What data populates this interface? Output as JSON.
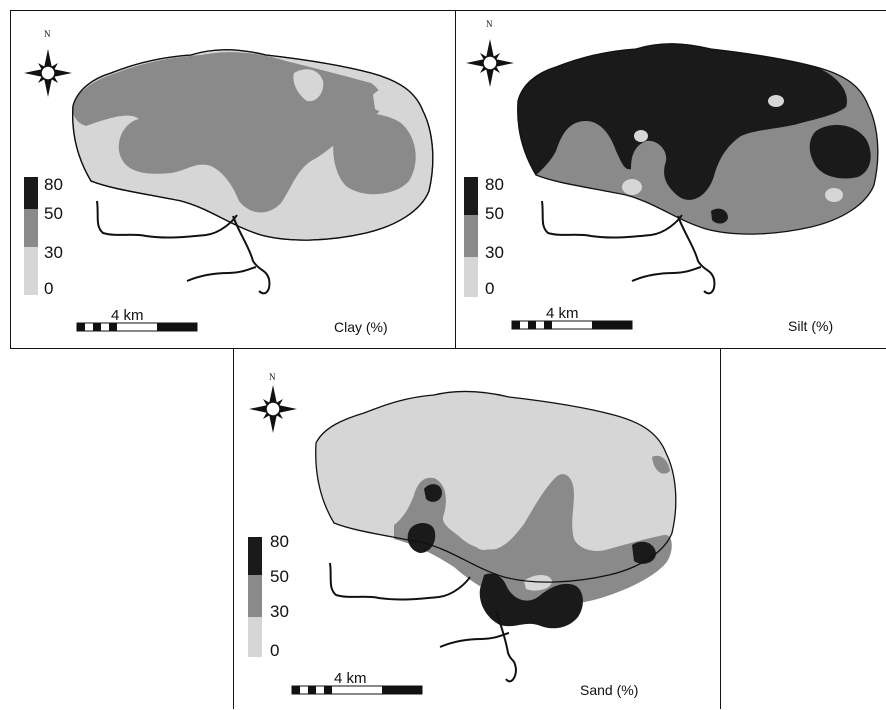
{
  "maps": [
    {
      "id": "clay",
      "label": "Clay (%)",
      "north": "N",
      "scale_label": "4 km",
      "legend": [
        {
          "value": "80",
          "color": "#1a1a1a"
        },
        {
          "value": "50",
          "color": "#8a8a8a"
        },
        {
          "value": "30",
          "color": "#d6d6d6"
        },
        {
          "value": "0",
          "color": "#d6d6d6"
        }
      ]
    },
    {
      "id": "silt",
      "label": "Silt (%)",
      "north": "N",
      "scale_label": "4 km",
      "legend": [
        {
          "value": "80",
          "color": "#1a1a1a"
        },
        {
          "value": "50",
          "color": "#8a8a8a"
        },
        {
          "value": "30",
          "color": "#d6d6d6"
        },
        {
          "value": "0",
          "color": "#d6d6d6"
        }
      ]
    },
    {
      "id": "sand",
      "label": "Sand (%)",
      "north": "N",
      "scale_label": "4 km",
      "legend": [
        {
          "value": "80",
          "color": "#1a1a1a"
        },
        {
          "value": "50",
          "color": "#8a8a8a"
        },
        {
          "value": "30",
          "color": "#d6d6d6"
        },
        {
          "value": "0",
          "color": "#d6d6d6"
        }
      ]
    }
  ],
  "colors": {
    "high": "#1a1a1a",
    "medium": "#8a8a8a",
    "low": "#d6d6d6",
    "outline": "#111111"
  }
}
